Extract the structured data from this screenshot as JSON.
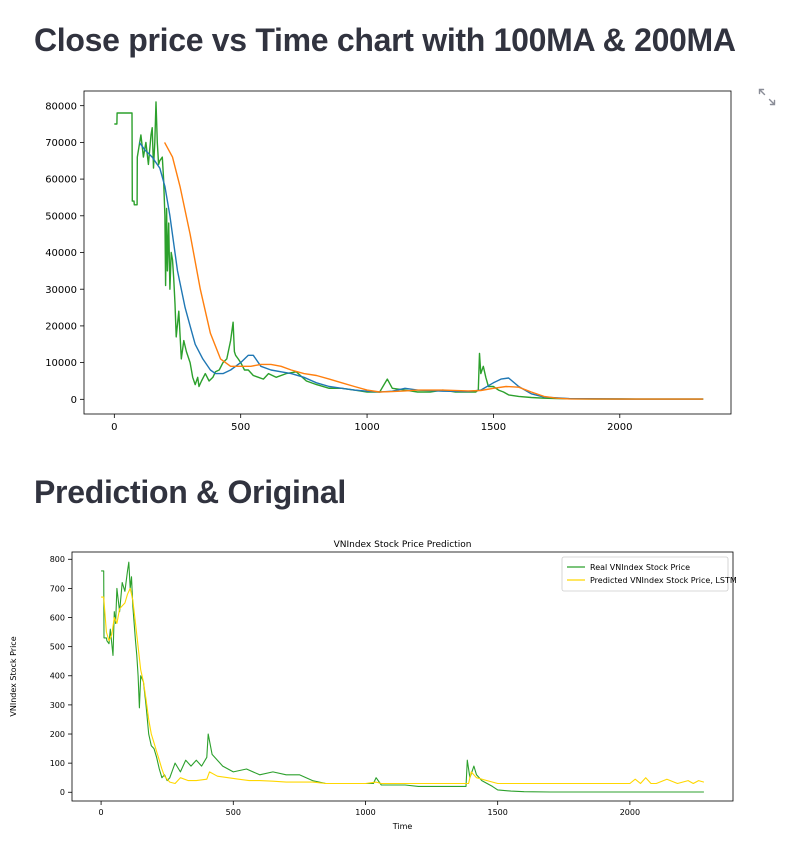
{
  "headings": {
    "ma_chart": "Close price vs Time chart with 100MA & 200MA",
    "prediction": "Prediction & Original"
  },
  "icons": {
    "fullscreen": "expand-icon"
  },
  "colors": {
    "close": "#2ca02c",
    "ma100": "#1f77b4",
    "ma200": "#ff7f0e",
    "real": "#2ca02c",
    "predicted": "#ffd700"
  },
  "chart_data": [
    {
      "type": "line",
      "title": "",
      "xlabel": "",
      "ylabel": "",
      "xlim": [
        -120,
        2440
      ],
      "ylim": [
        -4000,
        84000
      ],
      "xticks": [
        0,
        500,
        1000,
        1500,
        2000
      ],
      "yticks": [
        0,
        10000,
        20000,
        30000,
        40000,
        50000,
        60000,
        70000,
        80000
      ],
      "grid": false,
      "legend": "none",
      "series": [
        {
          "key": "close",
          "x": [
            0,
            10,
            11,
            70,
            71,
            78,
            79,
            90,
            91,
            105,
            115,
            125,
            135,
            145,
            150,
            155,
            160,
            165,
            170,
            175,
            180,
            190,
            195,
            200,
            203,
            207,
            210,
            215,
            220,
            225,
            230,
            235,
            240,
            245,
            255,
            265,
            275,
            285,
            300,
            310,
            320,
            330,
            335,
            345,
            360,
            375,
            390,
            400,
            415,
            430,
            445,
            460,
            470,
            475,
            480,
            490,
            500,
            515,
            530,
            550,
            570,
            590,
            610,
            640,
            680,
            720,
            760,
            800,
            850,
            900,
            950,
            1000,
            1050,
            1080,
            1100,
            1150,
            1200,
            1250,
            1300,
            1350,
            1400,
            1430,
            1440,
            1445,
            1450,
            1460,
            1470,
            1480,
            1500,
            1520,
            1540,
            1560,
            1600,
            1650,
            1700,
            1750,
            1800,
            1900,
            2000,
            2100,
            2200,
            2330
          ],
          "y": [
            75000,
            75000,
            78000,
            78000,
            54000,
            54000,
            53000,
            53000,
            66000,
            72000,
            66000,
            70000,
            64000,
            72000,
            74000,
            63000,
            70000,
            81000,
            70000,
            64000,
            65000,
            66000,
            60000,
            50000,
            31000,
            52000,
            35000,
            48000,
            30000,
            40000,
            38000,
            33000,
            26000,
            17000,
            24000,
            11000,
            16000,
            13000,
            10000,
            6000,
            4000,
            6000,
            3500,
            5000,
            7000,
            5000,
            6000,
            7500,
            8000,
            10000,
            11000,
            16000,
            21000,
            13000,
            12000,
            11000,
            10000,
            8000,
            8000,
            6500,
            6000,
            5500,
            7000,
            6000,
            7000,
            7500,
            5000,
            4000,
            3000,
            3000,
            2500,
            2000,
            2000,
            5500,
            3000,
            2500,
            2000,
            2000,
            2500,
            2000,
            2000,
            2000,
            2500,
            12500,
            7000,
            9000,
            6000,
            3500,
            3500,
            2500,
            2000,
            1200,
            800,
            500,
            300,
            200,
            150,
            100,
            80,
            70,
            60,
            50
          ]
        },
        {
          "key": "ma100",
          "x": [
            99,
            120,
            150,
            180,
            200,
            220,
            250,
            280,
            300,
            320,
            350,
            380,
            400,
            430,
            460,
            500,
            530,
            550,
            580,
            620,
            660,
            700,
            750,
            800,
            850,
            900,
            950,
            1000,
            1050,
            1100,
            1150,
            1200,
            1300,
            1400,
            1450,
            1500,
            1530,
            1560,
            1600,
            1650,
            1700,
            1800,
            2000,
            2330
          ],
          "y": [
            70000,
            68000,
            66000,
            63000,
            58000,
            50000,
            35000,
            25000,
            20000,
            15000,
            11000,
            8000,
            7000,
            7000,
            8000,
            10000,
            12000,
            12000,
            9000,
            8000,
            7500,
            7000,
            6000,
            4500,
            3500,
            3000,
            2500,
            2200,
            2000,
            2200,
            3000,
            2500,
            2200,
            2100,
            2500,
            4500,
            5500,
            5800,
            3500,
            1500,
            600,
            200,
            80,
            60
          ]
        },
        {
          "key": "ma200",
          "x": [
            199,
            230,
            260,
            300,
            340,
            380,
            420,
            460,
            500,
            540,
            580,
            620,
            660,
            700,
            750,
            800,
            850,
            900,
            950,
            1000,
            1050,
            1100,
            1150,
            1200,
            1300,
            1400,
            1450,
            1500,
            1550,
            1600,
            1650,
            1700,
            1750,
            1800,
            2000,
            2330
          ],
          "y": [
            70000,
            66000,
            58000,
            45000,
            30000,
            18000,
            11000,
            9000,
            9000,
            9000,
            9500,
            9500,
            9000,
            8000,
            7000,
            6500,
            5500,
            4500,
            3500,
            2500,
            2000,
            2100,
            2300,
            2500,
            2500,
            2300,
            2400,
            3000,
            3500,
            3300,
            2000,
            800,
            300,
            120,
            70,
            60
          ]
        }
      ]
    },
    {
      "type": "line",
      "title": "VNIndex Stock Price Prediction",
      "xlabel": "Time",
      "ylabel": "VNIndex Stock Price",
      "xlim": [
        -110,
        2390
      ],
      "ylim": [
        -30,
        825
      ],
      "xticks": [
        0,
        500,
        1000,
        1500,
        2000
      ],
      "yticks": [
        0,
        100,
        200,
        300,
        400,
        500,
        600,
        700,
        800
      ],
      "grid": false,
      "legend": "upper right",
      "series": [
        {
          "key": "real",
          "name": "Real VNIndex Stock Price",
          "x": [
            0,
            10,
            11,
            20,
            22,
            30,
            35,
            45,
            50,
            55,
            60,
            70,
            80,
            90,
            100,
            105,
            110,
            115,
            120,
            130,
            135,
            140,
            145,
            150,
            160,
            170,
            180,
            190,
            200,
            210,
            220,
            230,
            240,
            250,
            260,
            280,
            300,
            320,
            340,
            360,
            380,
            400,
            405,
            420,
            440,
            460,
            500,
            550,
            600,
            650,
            700,
            750,
            800,
            850,
            900,
            950,
            1000,
            1030,
            1040,
            1060,
            1100,
            1150,
            1200,
            1250,
            1300,
            1350,
            1380,
            1385,
            1395,
            1410,
            1420,
            1440,
            1460,
            1480,
            1500,
            1550,
            1600,
            1700,
            1800,
            2000,
            2200,
            2280
          ],
          "y": [
            760,
            760,
            530,
            530,
            520,
            510,
            560,
            470,
            620,
            580,
            700,
            620,
            720,
            690,
            760,
            790,
            700,
            740,
            640,
            520,
            470,
            400,
            290,
            400,
            380,
            300,
            200,
            160,
            150,
            120,
            80,
            50,
            60,
            40,
            50,
            100,
            70,
            110,
            90,
            110,
            90,
            120,
            200,
            130,
            110,
            90,
            70,
            80,
            60,
            70,
            60,
            60,
            40,
            30,
            30,
            30,
            30,
            30,
            50,
            25,
            25,
            25,
            20,
            20,
            20,
            20,
            20,
            110,
            50,
            90,
            60,
            40,
            30,
            20,
            8,
            4,
            2,
            1,
            1,
            1,
            1,
            1
          ]
        },
        {
          "key": "predicted",
          "name": "Predicted VNIndex Stock Price, LSTM",
          "x": [
            0,
            10,
            20,
            30,
            40,
            50,
            60,
            70,
            80,
            90,
            100,
            110,
            120,
            130,
            140,
            150,
            160,
            170,
            180,
            190,
            200,
            210,
            220,
            230,
            240,
            260,
            280,
            300,
            330,
            360,
            400,
            410,
            440,
            480,
            520,
            560,
            600,
            650,
            700,
            750,
            800,
            850,
            900,
            950,
            1000,
            1040,
            1060,
            1100,
            1200,
            1300,
            1390,
            1400,
            1420,
            1460,
            1500,
            1550,
            1600,
            1700,
            1800,
            1900,
            2000,
            2020,
            2040,
            2060,
            2080,
            2100,
            2140,
            2180,
            2220,
            2240,
            2260,
            2280
          ],
          "y": [
            670,
            670,
            550,
            520,
            540,
            600,
            580,
            630,
            640,
            650,
            680,
            700,
            660,
            580,
            500,
            420,
            380,
            320,
            250,
            200,
            170,
            140,
            110,
            80,
            55,
            35,
            30,
            50,
            40,
            40,
            45,
            70,
            55,
            50,
            45,
            40,
            40,
            38,
            35,
            35,
            35,
            30,
            30,
            30,
            30,
            35,
            30,
            30,
            30,
            30,
            30,
            70,
            50,
            40,
            30,
            30,
            30,
            30,
            30,
            30,
            30,
            45,
            30,
            50,
            30,
            30,
            45,
            30,
            40,
            30,
            40,
            35
          ]
        }
      ]
    }
  ]
}
